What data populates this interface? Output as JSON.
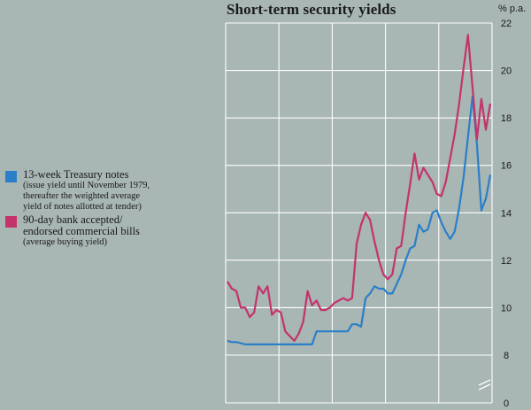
{
  "chart_data": {
    "type": "line",
    "title": "Short-term security yields",
    "unit": "% p.a.",
    "xlabel": "",
    "ylabel": "% p.a.",
    "ylim": [
      0,
      22
    ],
    "y_axis_break": [
      0,
      8
    ],
    "y_ticks": [
      "22",
      "20",
      "18",
      "16",
      "14",
      "12",
      "10",
      "8",
      "0"
    ],
    "y_tick_values": [
      22,
      20,
      18,
      16,
      14,
      12,
      10,
      8,
      0
    ],
    "grid": true,
    "x_gridlines": 5,
    "legend_position": "left",
    "series": [
      {
        "name": "13-week Treasury notes",
        "note_lines": [
          "(issue yield until November 1979,",
          "thereafter the weighted average",
          "yield of notes allotted at tender)"
        ],
        "color": "#2a7fc9",
        "x": [
          0,
          1,
          2,
          3,
          4,
          5,
          6,
          7,
          8,
          9,
          10,
          11,
          12,
          13,
          14,
          15,
          16,
          17,
          18,
          19,
          20,
          21,
          22,
          23,
          24,
          25,
          26,
          27,
          28,
          29,
          30,
          31,
          32,
          33,
          34,
          35,
          36,
          37,
          38,
          39,
          40,
          41,
          42,
          43,
          44,
          45,
          46,
          47,
          48,
          49,
          50,
          51,
          52,
          53,
          54,
          55,
          56,
          57,
          58,
          59
        ],
        "values": [
          8.6,
          8.55,
          8.55,
          8.5,
          8.45,
          8.45,
          8.45,
          8.45,
          8.45,
          8.45,
          8.45,
          8.45,
          8.45,
          8.45,
          8.45,
          8.45,
          8.45,
          8.45,
          8.45,
          8.45,
          9.0,
          9.0,
          9.0,
          9.0,
          9.0,
          9.0,
          9.0,
          9.0,
          9.3,
          9.3,
          9.2,
          10.4,
          10.6,
          10.9,
          10.8,
          10.8,
          10.6,
          10.6,
          11.0,
          11.4,
          12.0,
          12.5,
          12.6,
          13.5,
          13.2,
          13.3,
          14.0,
          14.1,
          13.6,
          13.2,
          12.9,
          13.2,
          14.2,
          15.5,
          17.2,
          18.9,
          16.9,
          14.1,
          14.6,
          15.6
        ]
      },
      {
        "name": "90-day bank accepted/ endorsed commercial bills",
        "name_lines": [
          "90-day bank accepted/",
          "endorsed commercial bills"
        ],
        "note_lines": [
          "(average buying yield)"
        ],
        "color": "#c4336b",
        "x": [
          0,
          1,
          2,
          3,
          4,
          5,
          6,
          7,
          8,
          9,
          10,
          11,
          12,
          13,
          14,
          15,
          16,
          17,
          18,
          19,
          20,
          21,
          22,
          23,
          24,
          25,
          26,
          27,
          28,
          29,
          30,
          31,
          32,
          33,
          34,
          35,
          36,
          37,
          38,
          39,
          40,
          41,
          42,
          43,
          44,
          45,
          46,
          47,
          48,
          49,
          50,
          51,
          52,
          53,
          54,
          55,
          56,
          57,
          58,
          59
        ],
        "values": [
          11.1,
          10.8,
          10.7,
          10.0,
          10.0,
          9.6,
          9.8,
          10.9,
          10.6,
          10.9,
          9.7,
          9.9,
          9.8,
          9.0,
          8.8,
          8.6,
          8.9,
          9.4,
          10.7,
          10.1,
          10.3,
          9.9,
          9.9,
          10.0,
          10.2,
          10.3,
          10.4,
          10.3,
          10.4,
          12.7,
          13.5,
          14.0,
          13.7,
          12.8,
          12.0,
          11.4,
          11.2,
          11.4,
          12.5,
          12.6,
          14.0,
          15.2,
          16.5,
          15.4,
          15.9,
          15.6,
          15.3,
          14.8,
          14.7,
          15.3,
          16.3,
          17.3,
          18.6,
          20.1,
          21.5,
          19.3,
          17.1,
          18.8,
          17.5,
          18.6
        ]
      }
    ]
  }
}
